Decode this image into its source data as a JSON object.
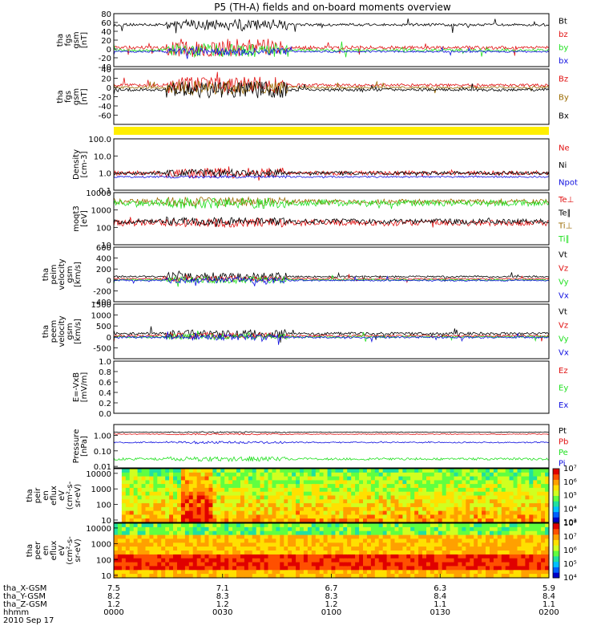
{
  "title": "P5 (TH-A) fields and on-board moments overview",
  "colors": {
    "black": "#000000",
    "red": "#e01010",
    "green": "#20e020",
    "blue": "#1010e0",
    "yellow": "#ffee00",
    "brown": "#9a6a00"
  },
  "chart_data": [
    {
      "id": "fgs",
      "type": "line",
      "ylabel": [
        "tha",
        "fgs",
        "gsm",
        "[nT]"
      ],
      "ylim": [
        -40,
        80
      ],
      "yticks": [
        -40,
        -20,
        0,
        20,
        40,
        60,
        80
      ],
      "series": [
        {
          "name": "Bt",
          "color": "black"
        },
        {
          "name": "bz",
          "color": "red"
        },
        {
          "name": "by",
          "color": "green"
        },
        {
          "name": "bx",
          "color": "blue"
        }
      ]
    },
    {
      "id": "fgs_dsl",
      "type": "line",
      "ylabel": [
        "tha",
        "fgs",
        "gsm",
        "[nT]"
      ],
      "ylim": [
        -80,
        40
      ],
      "yticks": [
        -60,
        -40,
        -20,
        0,
        20,
        40
      ],
      "series": [
        {
          "name": "Bz",
          "color": "red"
        },
        {
          "name": "By",
          "color": "brown"
        },
        {
          "name": "Bx",
          "color": "black"
        }
      ]
    },
    {
      "id": "mode",
      "type": "bar",
      "ylabel": [],
      "series": []
    },
    {
      "id": "density",
      "type": "line",
      "log": true,
      "ylabel": [
        "Density",
        "[cm-3]"
      ],
      "ylim": [
        0.1,
        100
      ],
      "yticks": [
        0.1,
        1.0,
        10.0,
        100.0
      ],
      "yticklabels": [
        "0.1",
        "1.0",
        "10.0",
        "100.0"
      ],
      "series": [
        {
          "name": "Ne",
          "color": "red"
        },
        {
          "name": "Ni",
          "color": "black"
        },
        {
          "name": "Npot",
          "color": "blue"
        }
      ]
    },
    {
      "id": "temp",
      "type": "line",
      "log": true,
      "ylabel": [
        "moqt3",
        "[eV]"
      ],
      "ylim": [
        10,
        10000
      ],
      "yticks": [
        10,
        100,
        1000,
        10000
      ],
      "yticklabels": [
        "10",
        "100",
        "1000",
        "10000"
      ],
      "series": [
        {
          "name": "Te⊥",
          "color": "red"
        },
        {
          "name": "Te∥",
          "color": "black"
        },
        {
          "name": "Ti⊥",
          "color": "brown"
        },
        {
          "name": "Ti∥",
          "color": "green"
        }
      ]
    },
    {
      "id": "peim_v",
      "type": "line",
      "ylabel": [
        "tha",
        "peim",
        "velocity",
        "gsm",
        "[km/s]"
      ],
      "ylim": [
        -400,
        600
      ],
      "yticks": [
        -400,
        -200,
        0,
        200,
        400,
        600
      ],
      "series": [
        {
          "name": "Vt",
          "color": "black"
        },
        {
          "name": "Vz",
          "color": "red"
        },
        {
          "name": "Vy",
          "color": "green"
        },
        {
          "name": "Vx",
          "color": "blue"
        }
      ]
    },
    {
      "id": "peem_v",
      "type": "line",
      "ylabel": [
        "tha",
        "peem",
        "velocity",
        "gsm",
        "[km/s]"
      ],
      "ylim": [
        -1000,
        1500
      ],
      "yticks": [
        -500,
        0,
        500,
        1000,
        1500
      ],
      "series": [
        {
          "name": "Vt",
          "color": "black"
        },
        {
          "name": "Vz",
          "color": "red"
        },
        {
          "name": "Vy",
          "color": "green"
        },
        {
          "name": "Vx",
          "color": "blue"
        }
      ]
    },
    {
      "id": "efield",
      "type": "line",
      "ylabel": [
        "E=-VxB",
        "[mV/m]"
      ],
      "ylim": [
        0,
        1
      ],
      "yticks": [
        0.0,
        0.2,
        0.4,
        0.6,
        0.8,
        1.0
      ],
      "yticklabels": [
        "0.0",
        "0.2",
        "0.4",
        "0.6",
        "0.8",
        "1.0"
      ],
      "series": [
        {
          "name": "Ez",
          "color": "red"
        },
        {
          "name": "Ey",
          "color": "green"
        },
        {
          "name": "Ex",
          "color": "blue"
        }
      ]
    },
    {
      "id": "pressure",
      "type": "line",
      "log": true,
      "ylabel": [
        "Pressure",
        "[nPa]"
      ],
      "ylim": [
        0.008,
        5
      ],
      "yticks": [
        0.01,
        0.1,
        1.0
      ],
      "yticklabels": [
        "0.01",
        "0.10",
        "1.00"
      ],
      "series": [
        {
          "name": "Pt",
          "color": "black"
        },
        {
          "name": "Pb",
          "color": "red"
        },
        {
          "name": "Pe",
          "color": "green"
        },
        {
          "name": "Pi",
          "color": "blue"
        }
      ]
    },
    {
      "id": "peir",
      "type": "heatmap",
      "log": true,
      "ylabel": [
        "tha",
        "peir",
        "en",
        "eflux",
        "eV",
        "(cm²-s-",
        "sr-eV)"
      ],
      "ylim": [
        7,
        20000
      ],
      "yticks": [
        10,
        100,
        1000,
        10000
      ],
      "yticklabels": [
        "10",
        "100",
        "1000",
        "10000"
      ],
      "colorbar": [
        "10³",
        "10⁴",
        "10⁵",
        "10⁶",
        "10⁷"
      ]
    },
    {
      "id": "peer",
      "type": "heatmap",
      "log": true,
      "ylabel": [
        "tha",
        "peer",
        "en",
        "eflux",
        "eV",
        "(cm²-s-",
        "sr-eV)"
      ],
      "ylim": [
        7,
        20000
      ],
      "yticks": [
        10,
        100,
        1000,
        10000
      ],
      "yticklabels": [
        "10",
        "100",
        "1000",
        "10000"
      ],
      "colorbar": [
        "10⁴",
        "10⁵",
        "10⁶",
        "10⁷",
        "10⁸"
      ]
    }
  ],
  "xaxis": {
    "rows": [
      {
        "label": "tha_X-GSM",
        "values": [
          "7.5",
          "7.1",
          "6.7",
          "6.3",
          "5.9"
        ]
      },
      {
        "label": "tha_Y-GSM",
        "values": [
          "8.2",
          "8.3",
          "8.3",
          "8.4",
          "8.4"
        ]
      },
      {
        "label": "tha_Z-GSM",
        "values": [
          "1.2",
          "1.2",
          "1.2",
          "1.1",
          "1.1"
        ]
      },
      {
        "label": "hhmm",
        "values": [
          "0000",
          "0030",
          "0100",
          "0130",
          "0200"
        ]
      }
    ],
    "date": "2010 Sep 17"
  }
}
